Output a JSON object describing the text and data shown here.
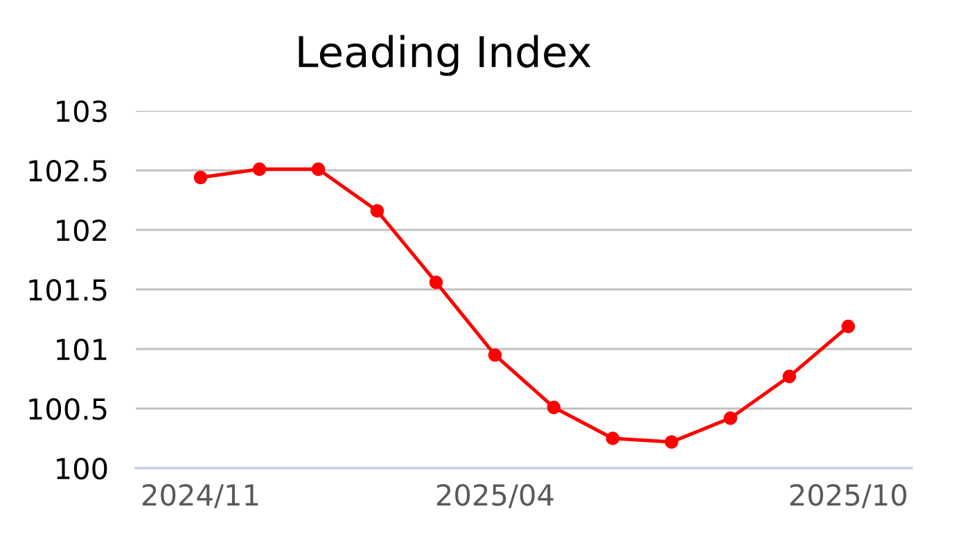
{
  "chart_data": {
    "type": "line",
    "title": "Leading Index",
    "categories": [
      "2024/11",
      null,
      null,
      null,
      null,
      "2025/04",
      null,
      null,
      null,
      null,
      null,
      "2025/10"
    ],
    "series": [
      {
        "color": "#ff0000",
        "values": [
          102.44,
          102.51,
          102.51,
          102.16,
          101.56,
          100.95,
          100.51,
          100.25,
          100.22,
          100.42,
          100.77,
          101.19
        ]
      }
    ],
    "ylim": [
      100,
      103
    ],
    "yticks": [
      100,
      100.5,
      101,
      101.5,
      102,
      102.5,
      103
    ],
    "grid": "y",
    "marker": "circle",
    "line_style": "solid"
  }
}
